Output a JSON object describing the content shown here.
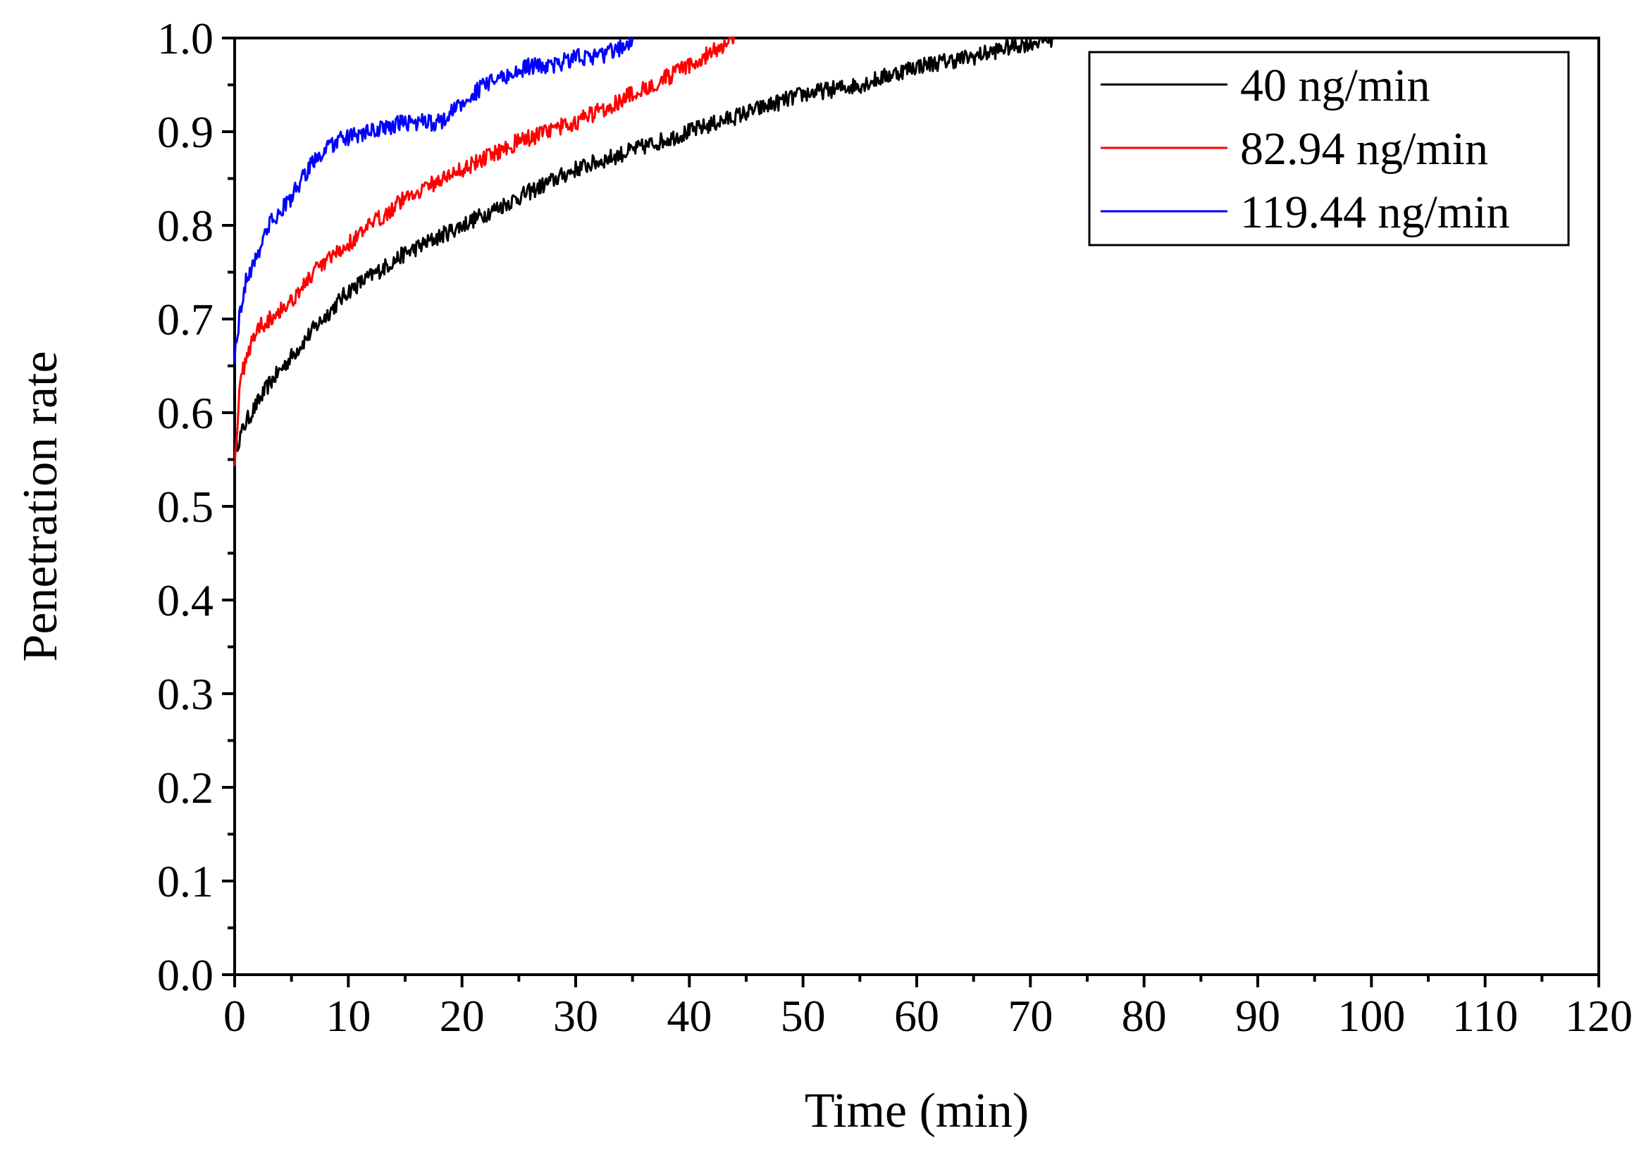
{
  "chart_data": {
    "type": "line",
    "title": "",
    "xlabel": "Time (min)",
    "ylabel": "Penetration rate",
    "xlim": [
      0,
      120
    ],
    "ylim": [
      0.0,
      1.0
    ],
    "xticks": [
      0,
      10,
      20,
      30,
      40,
      50,
      60,
      70,
      80,
      90,
      100,
      110,
      120
    ],
    "xtick_labels": [
      "0",
      "10",
      "20",
      "30",
      "40",
      "50",
      "60",
      "70",
      "80",
      "90",
      "100",
      "110",
      "120"
    ],
    "yticks": [
      0.0,
      0.1,
      0.2,
      0.3,
      0.4,
      0.5,
      0.6,
      0.7,
      0.8,
      0.9,
      1.0
    ],
    "ytick_labels": [
      "0.0",
      "0.1",
      "0.2",
      "0.3",
      "0.4",
      "0.5",
      "0.6",
      "0.7",
      "0.8",
      "0.9",
      "1.0"
    ],
    "grid": false,
    "legend_position": "top-right",
    "series": [
      {
        "name": "40 ng/min",
        "color": "#000000",
        "x": [
          0,
          1,
          2,
          3,
          5,
          7,
          10,
          15,
          20,
          25,
          30,
          35,
          40,
          45,
          50,
          55,
          60,
          65,
          68,
          72
        ],
        "y": [
          0.56,
          0.59,
          0.61,
          0.63,
          0.66,
          0.69,
          0.73,
          0.77,
          0.8,
          0.83,
          0.86,
          0.88,
          0.9,
          0.92,
          0.94,
          0.95,
          0.97,
          0.98,
          0.99,
          1.0
        ]
      },
      {
        "name": "82.94 ng/min",
        "color": "#ff0000",
        "x": [
          0,
          0.5,
          1,
          2,
          3,
          5,
          7,
          10,
          15,
          20,
          25,
          30,
          35,
          40,
          44
        ],
        "y": [
          0.55,
          0.63,
          0.66,
          0.69,
          0.7,
          0.72,
          0.75,
          0.78,
          0.83,
          0.86,
          0.89,
          0.91,
          0.94,
          0.97,
          1.0
        ]
      },
      {
        "name": "119.44 ng/min",
        "color": "#0000ff",
        "x": [
          0,
          0.5,
          1,
          2,
          3,
          5,
          7,
          9,
          12,
          15,
          18,
          20,
          22,
          24,
          26,
          28,
          30,
          32,
          34,
          35
        ],
        "y": [
          0.66,
          0.71,
          0.74,
          0.77,
          0.8,
          0.83,
          0.87,
          0.89,
          0.9,
          0.91,
          0.91,
          0.93,
          0.95,
          0.96,
          0.97,
          0.97,
          0.98,
          0.98,
          0.99,
          1.0
        ]
      }
    ]
  }
}
